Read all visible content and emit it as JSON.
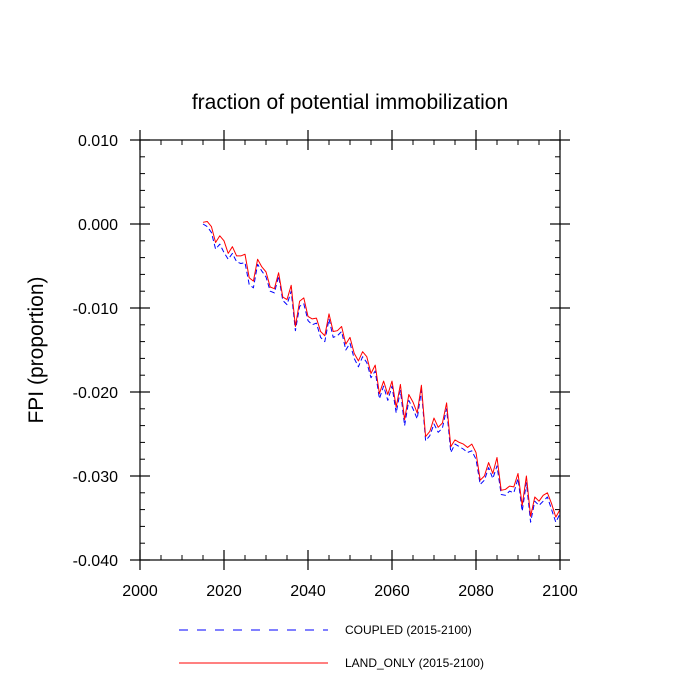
{
  "chart_data": {
    "type": "line",
    "title": "fraction of potential immobilization",
    "xlabel": "",
    "ylabel": "FPI  (proportion)",
    "xlim": [
      2000,
      2100
    ],
    "ylim": [
      -0.04,
      0.01
    ],
    "x_ticks": [
      2000,
      2020,
      2040,
      2060,
      2080,
      2100
    ],
    "x_tick_labels": [
      "2000",
      "2020",
      "2040",
      "2060",
      "2080",
      "2100"
    ],
    "y_ticks": [
      0.01,
      0.0,
      -0.01,
      -0.02,
      -0.03,
      -0.04
    ],
    "y_tick_labels": [
      "0.010",
      "0.000",
      "-0.010",
      "-0.020",
      "-0.030",
      "-0.040"
    ],
    "x": [
      2015,
      2016,
      2017,
      2018,
      2019,
      2020,
      2021,
      2022,
      2023,
      2024,
      2025,
      2026,
      2027,
      2028,
      2029,
      2030,
      2031,
      2032,
      2033,
      2034,
      2035,
      2036,
      2037,
      2038,
      2039,
      2040,
      2041,
      2042,
      2043,
      2044,
      2045,
      2046,
      2047,
      2048,
      2049,
      2050,
      2051,
      2052,
      2053,
      2054,
      2055,
      2056,
      2057,
      2058,
      2059,
      2060,
      2061,
      2062,
      2063,
      2064,
      2065,
      2066,
      2067,
      2068,
      2069,
      2070,
      2071,
      2072,
      2073,
      2074,
      2075,
      2076,
      2077,
      2078,
      2079,
      2080,
      2081,
      2082,
      2083,
      2084,
      2085,
      2086,
      2087,
      2088,
      2089,
      2090,
      2091,
      2092,
      2093,
      2094,
      2095,
      2096,
      2097,
      2098,
      2099,
      2100
    ],
    "series": [
      {
        "name": "COUPLED (2015-2100)",
        "color": "#0000ff",
        "dash": "dashed",
        "values": [
          0.0,
          -0.0003,
          -0.001,
          -0.003,
          -0.0024,
          -0.0034,
          -0.0042,
          -0.0035,
          -0.0045,
          -0.0047,
          -0.0046,
          -0.0072,
          -0.0076,
          -0.0048,
          -0.0056,
          -0.0063,
          -0.008,
          -0.0082,
          -0.0062,
          -0.0091,
          -0.0096,
          -0.008,
          -0.0127,
          -0.0098,
          -0.0095,
          -0.0115,
          -0.012,
          -0.0118,
          -0.0135,
          -0.014,
          -0.0113,
          -0.0135,
          -0.0133,
          -0.0128,
          -0.015,
          -0.0142,
          -0.016,
          -0.017,
          -0.0158,
          -0.0165,
          -0.0183,
          -0.0175,
          -0.0208,
          -0.0193,
          -0.021,
          -0.0193,
          -0.0225,
          -0.0198,
          -0.024,
          -0.021,
          -0.022,
          -0.0232,
          -0.0198,
          -0.0258,
          -0.0252,
          -0.0238,
          -0.0248,
          -0.0243,
          -0.022,
          -0.0272,
          -0.0262,
          -0.0265,
          -0.0268,
          -0.0272,
          -0.027,
          -0.028,
          -0.031,
          -0.0305,
          -0.029,
          -0.0303,
          -0.0288,
          -0.0322,
          -0.0323,
          -0.0318,
          -0.032,
          -0.0303,
          -0.0342,
          -0.0308,
          -0.0355,
          -0.033,
          -0.0335,
          -0.033,
          -0.0325,
          -0.034,
          -0.0355,
          -0.0345
        ]
      },
      {
        "name": "LAND_ONLY (2015-2100)",
        "color": "#ff0000",
        "dash": "solid",
        "values": [
          0.0002,
          0.0003,
          -0.0003,
          -0.0022,
          -0.0014,
          -0.002,
          -0.0035,
          -0.0027,
          -0.0038,
          -0.0038,
          -0.0036,
          -0.0064,
          -0.0068,
          -0.0042,
          -0.0051,
          -0.0057,
          -0.0075,
          -0.0077,
          -0.0058,
          -0.0087,
          -0.009,
          -0.0073,
          -0.0122,
          -0.0092,
          -0.0088,
          -0.011,
          -0.0113,
          -0.0112,
          -0.0128,
          -0.0133,
          -0.0107,
          -0.0128,
          -0.0127,
          -0.0122,
          -0.0143,
          -0.0135,
          -0.0154,
          -0.0163,
          -0.0152,
          -0.0158,
          -0.0178,
          -0.0168,
          -0.0202,
          -0.0187,
          -0.0203,
          -0.0187,
          -0.0218,
          -0.0191,
          -0.0233,
          -0.0203,
          -0.0212,
          -0.0225,
          -0.0192,
          -0.0253,
          -0.0247,
          -0.0231,
          -0.0242,
          -0.0237,
          -0.0213,
          -0.0265,
          -0.0257,
          -0.026,
          -0.0262,
          -0.0266,
          -0.0262,
          -0.0272,
          -0.0305,
          -0.03,
          -0.0284,
          -0.0297,
          -0.0278,
          -0.0317,
          -0.0316,
          -0.0312,
          -0.0313,
          -0.0297,
          -0.0335,
          -0.03,
          -0.0348,
          -0.0325,
          -0.033,
          -0.0323,
          -0.032,
          -0.0333,
          -0.0349,
          -0.034
        ]
      }
    ],
    "legend": [
      {
        "label": "COUPLED (2015-2100)",
        "color": "#0000ff",
        "dash": "dashed"
      },
      {
        "label": "LAND_ONLY (2015-2100)",
        "color": "#ff0000",
        "dash": "solid"
      }
    ],
    "legend_position": "bottom"
  }
}
